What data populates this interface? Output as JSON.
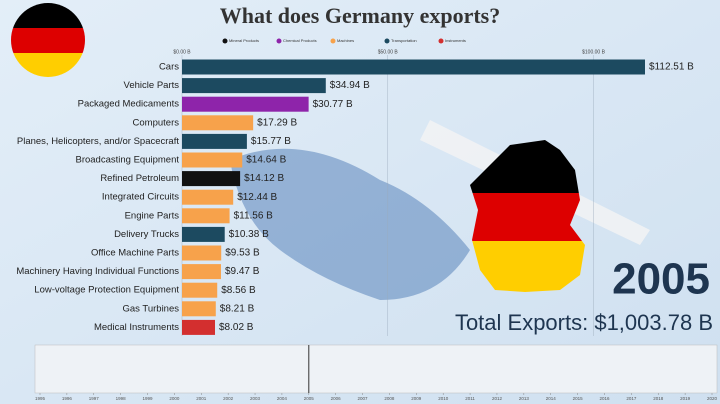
{
  "chart_data": {
    "type": "bar",
    "orientation": "horizontal",
    "title": "What does Germany exports?",
    "legend": [
      {
        "name": "Mineral Products",
        "color": "#111111"
      },
      {
        "name": "Chemical Products",
        "color": "#8e24aa"
      },
      {
        "name": "Machines",
        "color": "#f7a24b"
      },
      {
        "name": "Transportation",
        "color": "#1c4a60"
      },
      {
        "name": "Instruments",
        "color": "#d32f2f"
      }
    ],
    "categories": [
      "Cars",
      "Vehicle Parts",
      "Packaged Medicaments",
      "Computers",
      "Planes, Helicopters, and/or Spacecraft",
      "Broadcasting Equipment",
      "Refined Petroleum",
      "Integrated Circuits",
      "Engine Parts",
      "Delivery Trucks",
      "Office Machine Parts",
      "Machinery Having Individual Functions",
      "Low-voltage Protection Equipment",
      "Gas Turbines",
      "Medical Instruments"
    ],
    "values": [
      112.51,
      34.94,
      30.77,
      17.29,
      15.77,
      14.64,
      14.12,
      12.44,
      11.56,
      10.38,
      9.53,
      9.47,
      8.56,
      8.21,
      8.02
    ],
    "value_labels": [
      "$112.51 B",
      "$34.94 B",
      "$30.77 B",
      "$17.29 B",
      "$15.77 B",
      "$14.64 B",
      "$14.12 B",
      "$12.44 B",
      "$11.56 B",
      "$10.38 B",
      "$9.53 B",
      "$9.47 B",
      "$8.56 B",
      "$8.21 B",
      "$8.02 B"
    ],
    "colors": [
      "#1c4a60",
      "#1c4a60",
      "#8e24aa",
      "#f7a24b",
      "#1c4a60",
      "#f7a24b",
      "#111111",
      "#f7a24b",
      "#f7a24b",
      "#1c4a60",
      "#f7a24b",
      "#f7a24b",
      "#f7a24b",
      "#f7a24b",
      "#d32f2f"
    ],
    "xlim": [
      0,
      112.51
    ],
    "xticks": [
      {
        "value": 0,
        "label": "$0.00 B"
      },
      {
        "value": 50,
        "label": "$50.00 B"
      },
      {
        "value": 100,
        "label": "$100.00 B"
      }
    ],
    "year": "2005",
    "total": "Total Exports: $1,003.78 B",
    "timeline": {
      "xlim": [
        1995,
        2020
      ],
      "xticks": [
        1995,
        1996,
        1997,
        1998,
        1999,
        2000,
        2001,
        2002,
        2003,
        2004,
        2005,
        2006,
        2007,
        2008,
        2009,
        2010,
        2011,
        2012,
        2013,
        2014,
        2015,
        2016,
        2017,
        2018,
        2019,
        2020
      ],
      "current": 2005
    }
  }
}
